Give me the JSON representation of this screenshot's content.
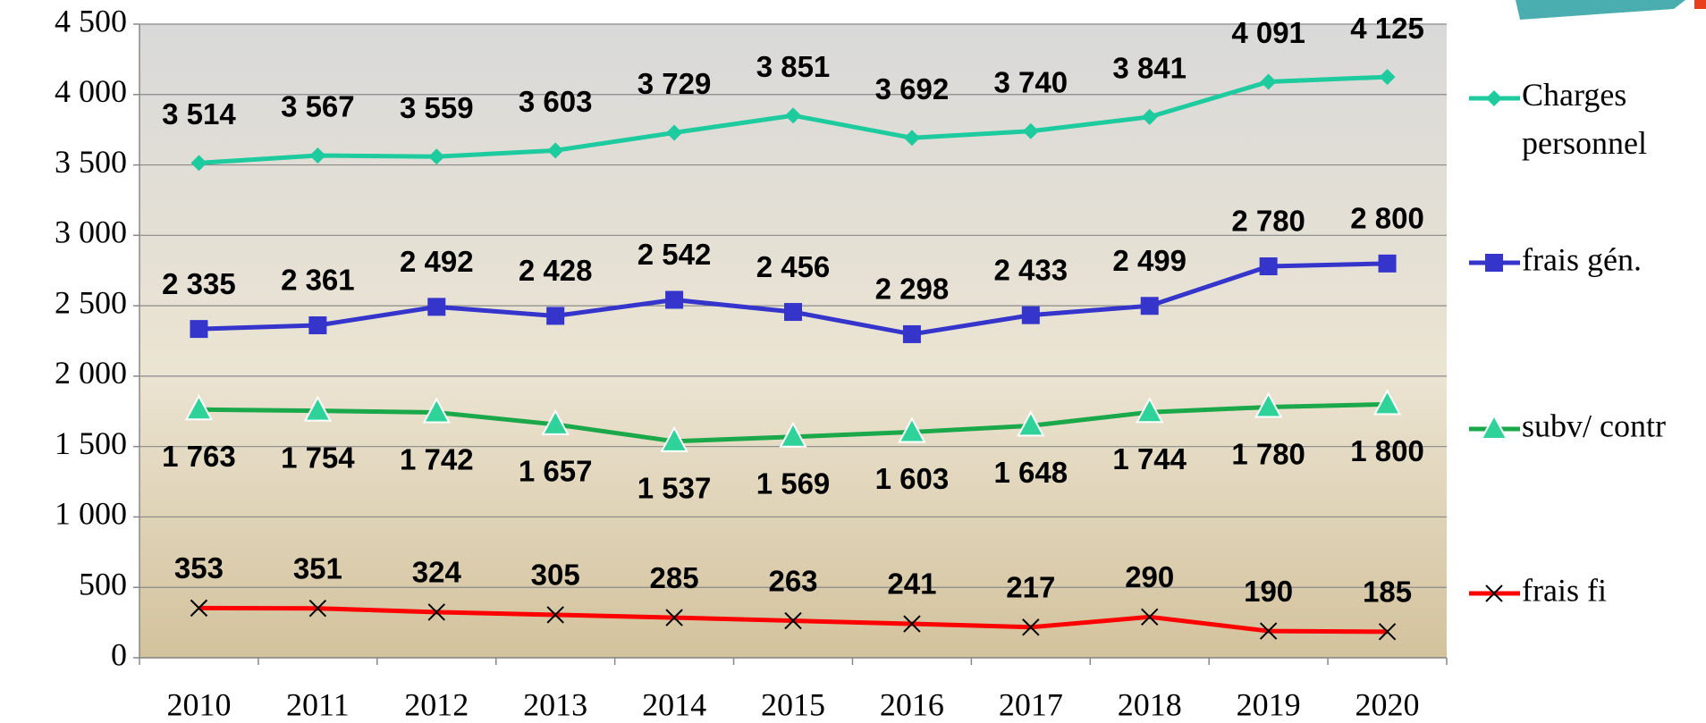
{
  "chart_data": {
    "type": "line",
    "categories": [
      "2010",
      "2011",
      "2012",
      "2013",
      "2014",
      "2015",
      "2016",
      "2017",
      "2018",
      "2019",
      "2020"
    ],
    "series": [
      {
        "name": "Charges personnel",
        "color": "#1ecb9e",
        "marker": "diamond",
        "values": [
          3514,
          3567,
          3559,
          3603,
          3729,
          3851,
          3692,
          3740,
          3841,
          4091,
          4125
        ],
        "value_labels": [
          "3 514",
          "3 567",
          "3 559",
          "3 603",
          "3 729",
          "3 851",
          "3 692",
          "3 740",
          "3 841",
          "4 091",
          "4 125"
        ]
      },
      {
        "name": "frais gén.",
        "color": "#3535cc",
        "marker": "square",
        "values": [
          2335,
          2361,
          2492,
          2428,
          2542,
          2456,
          2298,
          2433,
          2499,
          2780,
          2800
        ],
        "value_labels": [
          "2 335",
          "2 361",
          "2 492",
          "2 428",
          "2 542",
          "2 456",
          "2 298",
          "2 433",
          "2 499",
          "2 780",
          "2 800"
        ]
      },
      {
        "name": "subv/ contr",
        "color": "#1aa84a",
        "marker": "triangle",
        "values": [
          1763,
          1754,
          1742,
          1657,
          1537,
          1569,
          1603,
          1648,
          1744,
          1780,
          1800
        ],
        "value_labels": [
          "1 763",
          "1 754",
          "1 742",
          "1 657",
          "1 537",
          "1 569",
          "1 603",
          "1 648",
          "1 744",
          "1 780",
          "1 800"
        ]
      },
      {
        "name": "frais fi",
        "color": "#ff0000",
        "marker": "x",
        "values": [
          353,
          351,
          324,
          305,
          285,
          263,
          241,
          217,
          290,
          190,
          185
        ]
      }
    ],
    "ylim": [
      0,
      4500
    ],
    "yticks": [
      0,
      500,
      {
        "value": 1000,
        "label": "1 000"
      },
      {
        "value": 1500,
        "label": "1 500"
      },
      {
        "value": 2000,
        "label": "2 000"
      },
      {
        "value": 2500,
        "label": "2 500"
      },
      {
        "value": 3000,
        "label": "3 000"
      },
      {
        "value": 3500,
        "label": "3 500"
      },
      {
        "value": 4000,
        "label": "4 000"
      },
      {
        "value": 4500,
        "label": "4 500"
      }
    ],
    "grid": true,
    "legend": "right"
  }
}
